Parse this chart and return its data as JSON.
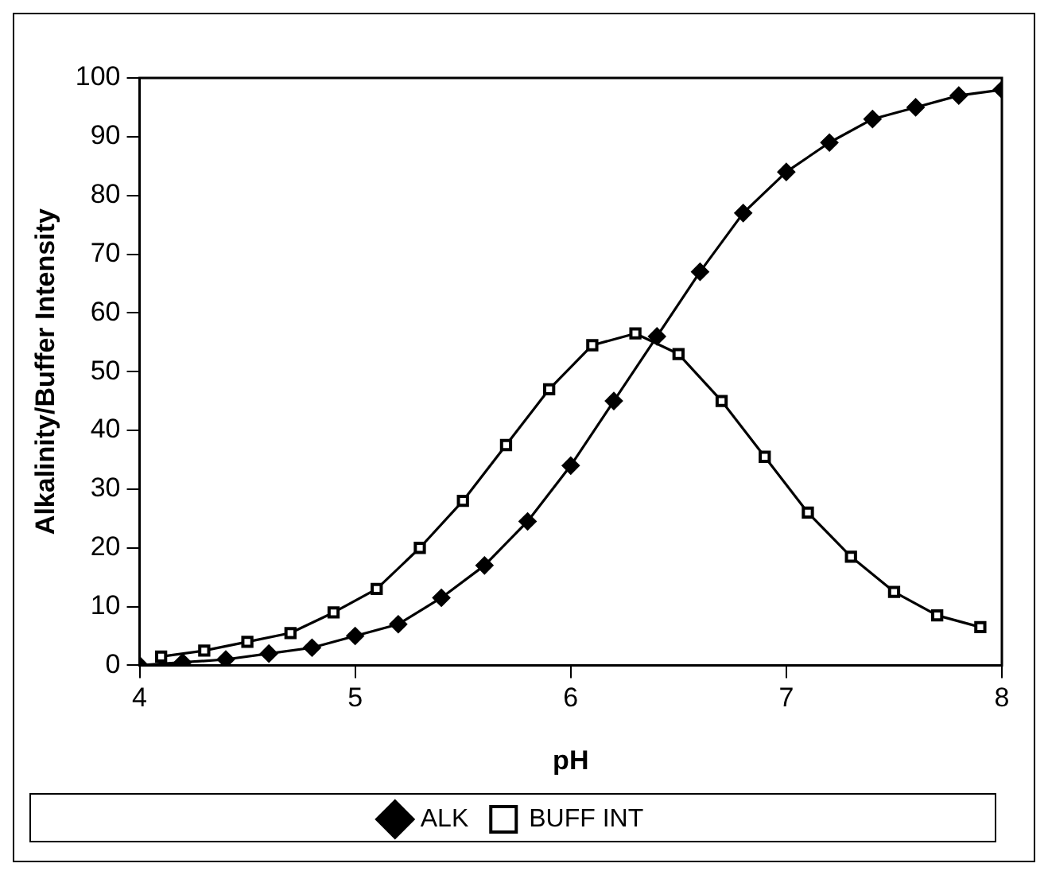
{
  "chart_data": {
    "type": "line",
    "xlabel": "pH",
    "ylabel": "Alkalinity/Buffer Intensity",
    "xlim": [
      4,
      8
    ],
    "xticks": [
      4,
      5,
      6,
      7,
      8
    ],
    "ylim": [
      0,
      100
    ],
    "yticks": [
      0,
      10,
      20,
      30,
      40,
      50,
      60,
      70,
      80,
      90,
      100
    ],
    "grid": false,
    "legend": "bottom",
    "series": [
      {
        "name": "ALK",
        "color": "#000000",
        "marker": "diamond",
        "x": [
          4.0,
          4.2,
          4.4,
          4.6,
          4.8,
          5.0,
          5.2,
          5.4,
          5.6,
          5.8,
          6.0,
          6.2,
          6.4,
          6.6,
          6.8,
          7.0,
          7.2,
          7.4,
          7.6,
          7.8,
          8.0
        ],
        "values": [
          0,
          0.5,
          1,
          2,
          3,
          5,
          7,
          11.5,
          17,
          24.5,
          34,
          45,
          56,
          67,
          77,
          84,
          89,
          93,
          95,
          97,
          98
        ]
      },
      {
        "name": "BUFF INT",
        "color": "#000000",
        "marker": "square",
        "x": [
          4.1,
          4.3,
          4.5,
          4.7,
          4.9,
          5.1,
          5.3,
          5.5,
          5.7,
          5.9,
          6.1,
          6.3,
          6.5,
          6.7,
          6.9,
          7.1,
          7.3,
          7.5,
          7.7,
          7.9
        ],
        "values": [
          1.5,
          2.5,
          4,
          5.5,
          9,
          13,
          20,
          28,
          37.5,
          47,
          54.5,
          56.5,
          53,
          45,
          35.5,
          26,
          18.5,
          12.5,
          8.5,
          6.5
        ]
      }
    ]
  }
}
